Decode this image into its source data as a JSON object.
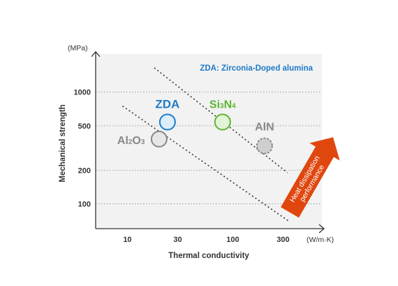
{
  "chart_data": {
    "type": "scatter",
    "title": "",
    "xlabel": "Thermal conductivity",
    "ylabel": "Mechanical strength",
    "x_unit": "(W/m·K)",
    "y_unit": "(MPa)",
    "x_scale": "log",
    "y_scale": "log",
    "xlim": [
      5,
      700
    ],
    "ylim": [
      60,
      2200
    ],
    "x_ticks": [
      10,
      30,
      100,
      300
    ],
    "y_ticks": [
      100,
      200,
      500,
      1000
    ],
    "grid": "horizontal dotted",
    "note": "ZDA: Zirconia-Doped alumina",
    "points": [
      {
        "label": "Al2O3",
        "label_main": "Al",
        "label_sub1": "2",
        "label_mid": "O",
        "label_sub2": "3",
        "x": 20,
        "y": 380,
        "color": "#888888",
        "fill": "#e6e6e6",
        "dashed": false
      },
      {
        "label": "ZDA",
        "x": 24,
        "y": 540,
        "color": "#1e7ac8",
        "fill": "#dceefa",
        "dashed": false
      },
      {
        "label": "Si3N4",
        "label_main": "Si",
        "label_sub1": "3",
        "label_mid": "N",
        "label_sub2": "4",
        "x": 80,
        "y": 540,
        "color": "#5cb531",
        "fill": "#e3f3d8",
        "dashed": false
      },
      {
        "label": "AlN",
        "x": 200,
        "y": 330,
        "color": "#888888",
        "fill": "#cfcfcf",
        "dashed": true
      }
    ],
    "trend_lines": [
      {
        "from": [
          9,
          750
        ],
        "to": [
          340,
          70
        ]
      },
      {
        "from": [
          18,
          1650
        ],
        "to": [
          330,
          190
        ]
      }
    ],
    "arrow_label_line1": "Heat dissipation",
    "arrow_label_line2": "performance",
    "colors": {
      "arrow": "#e0470f",
      "axis": "#333333",
      "zda": "#1e7ac8",
      "si3n4": "#5cb531",
      "gray": "#888888"
    }
  }
}
